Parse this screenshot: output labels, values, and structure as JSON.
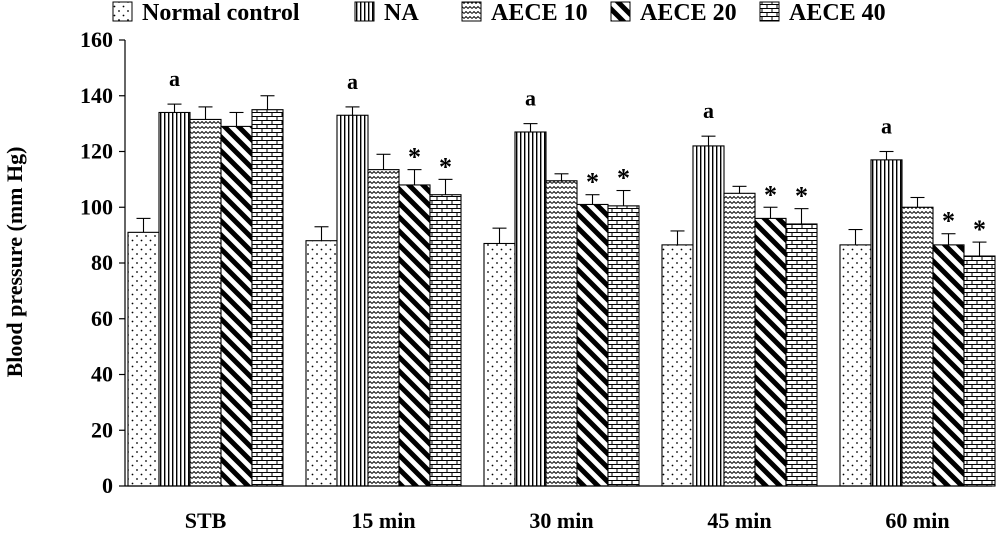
{
  "chart_data": {
    "type": "bar",
    "title": "",
    "xlabel": "",
    "ylabel": "Blood pressure (mm Hg)",
    "ylim": [
      0,
      160
    ],
    "yticks": [
      "0",
      "20",
      "40",
      "60",
      "80",
      "100",
      "120",
      "140",
      "160"
    ],
    "categories": [
      "STB",
      "15 min",
      "30 min",
      "45 min",
      "60 min"
    ],
    "series": [
      {
        "name": "Normal control",
        "pattern": "dots",
        "values": [
          91,
          88,
          87,
          86.5,
          86.5
        ],
        "errors": [
          5,
          5,
          5.5,
          5,
          5.5
        ]
      },
      {
        "name": "NA",
        "pattern": "vlines",
        "values": [
          134,
          133,
          127,
          122,
          117
        ],
        "errors": [
          3,
          3,
          3,
          3.5,
          3
        ]
      },
      {
        "name": "AECE 10",
        "pattern": "zigzag",
        "values": [
          131.5,
          113.5,
          109.5,
          105,
          100
        ],
        "errors": [
          4.5,
          5.5,
          2.5,
          2.5,
          3.5
        ]
      },
      {
        "name": "AECE 20",
        "pattern": "diag",
        "values": [
          129,
          108,
          101,
          96,
          86.5
        ],
        "errors": [
          5,
          5.5,
          3.5,
          4,
          4
        ]
      },
      {
        "name": "AECE 40",
        "pattern": "bricks",
        "values": [
          135,
          104.5,
          100.5,
          94,
          82.5
        ],
        "errors": [
          5,
          5.5,
          5.5,
          5.5,
          5
        ]
      }
    ],
    "annotations": [
      {
        "category": "STB",
        "series": "NA",
        "text": "a"
      },
      {
        "category": "15 min",
        "series": "NA",
        "text": "a"
      },
      {
        "category": "15 min",
        "series": "AECE 20",
        "text": "*"
      },
      {
        "category": "15 min",
        "series": "AECE 40",
        "text": "*"
      },
      {
        "category": "30 min",
        "series": "NA",
        "text": "a"
      },
      {
        "category": "30 min",
        "series": "AECE 20",
        "text": "*"
      },
      {
        "category": "30 min",
        "series": "AECE 40",
        "text": "*"
      },
      {
        "category": "45 min",
        "series": "NA",
        "text": "a"
      },
      {
        "category": "45 min",
        "series": "AECE 20",
        "text": "*"
      },
      {
        "category": "45 min",
        "series": "AECE 40",
        "text": "*"
      },
      {
        "category": "60 min",
        "series": "NA",
        "text": "a"
      },
      {
        "category": "60 min",
        "series": "AECE 20",
        "text": "*"
      },
      {
        "category": "60 min",
        "series": "AECE 40",
        "text": "*"
      }
    ],
    "legend": {
      "position": "top"
    },
    "grid": false
  }
}
